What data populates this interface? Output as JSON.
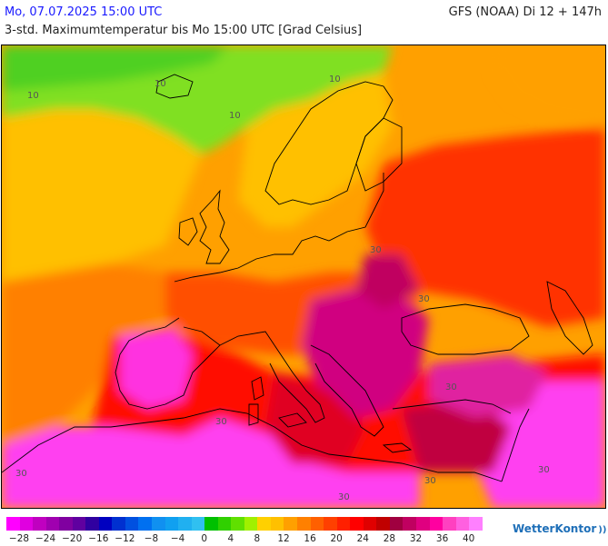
{
  "header": {
    "datetime": "Mo, 07.07.2025 15:00 UTC",
    "title": "3-std. Maximumtemperatur bis Mo 15:00 UTC [Grad Celsius]",
    "model_run": "GFS (NOAA) Di 12 + 147h"
  },
  "map": {
    "region": "Europe",
    "contour_labels": [
      "10",
      "10",
      "10",
      "10",
      "30",
      "30",
      "30",
      "30",
      "30",
      "30",
      "30",
      "30"
    ]
  },
  "legend": {
    "colors": [
      "#ff00ff",
      "#e000e0",
      "#c000c0",
      "#a000b0",
      "#8000a0",
      "#6000a0",
      "#3000a0",
      "#0000c0",
      "#0030d0",
      "#0050e0",
      "#0070f0",
      "#1090f0",
      "#10a0f0",
      "#20b0f0",
      "#30c0f0",
      "#00c000",
      "#30d000",
      "#60e000",
      "#a0f000",
      "#ffd000",
      "#ffc000",
      "#ffa000",
      "#ff8000",
      "#ff6000",
      "#ff4000",
      "#ff2000",
      "#ff0000",
      "#e00000",
      "#c00000",
      "#a00040",
      "#c00060",
      "#e00080",
      "#ff00a0",
      "#ff40c0",
      "#ff60e0",
      "#ff80ff"
    ],
    "ticks": [
      "−28",
      "−24",
      "−20",
      "−16",
      "−12",
      "−8",
      "−4",
      "0",
      "4",
      "8",
      "12",
      "16",
      "20",
      "24",
      "28",
      "32",
      "36",
      "40"
    ]
  },
  "brand": {
    "name": "WetterKontor",
    "icon": "signal-waves-icon"
  }
}
